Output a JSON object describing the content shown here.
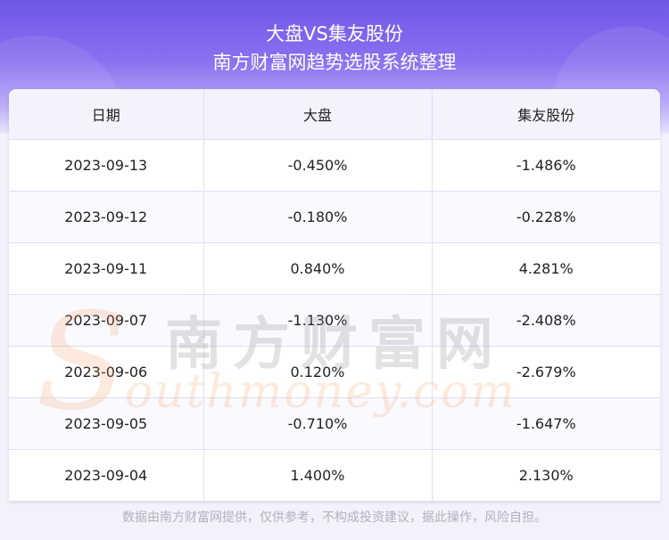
{
  "header": {
    "title_line1": "大盘VS集友股份",
    "title_line2": "南方财富网趋势选股系统整理"
  },
  "table": {
    "columns": [
      "日期",
      "大盘",
      "集友股份"
    ],
    "rows": [
      [
        "2023-09-13",
        "-0.450%",
        "-1.486%"
      ],
      [
        "2023-09-12",
        "-0.180%",
        "-0.228%"
      ],
      [
        "2023-09-11",
        "0.840%",
        "4.281%"
      ],
      [
        "2023-09-07",
        "-1.130%",
        "-2.408%"
      ],
      [
        "2023-09-06",
        "0.120%",
        "-2.679%"
      ],
      [
        "2023-09-05",
        "-0.710%",
        "-1.647%"
      ],
      [
        "2023-09-04",
        "1.400%",
        "2.130%"
      ]
    ]
  },
  "watermark": {
    "cn": "南方财富网",
    "en_initial": "S",
    "en_rest": "outhmoney.com"
  },
  "footer": {
    "disclaimer": "数据由南方财富网提供，仅供参考，不构成投资建议，据此操作，风险自担。"
  },
  "colors": {
    "banner_top": "#6f57e6",
    "banner_bottom": "#e8e3fb",
    "header_row_bg": "#f4f2fd",
    "footer_text": "#b3b0bf"
  }
}
